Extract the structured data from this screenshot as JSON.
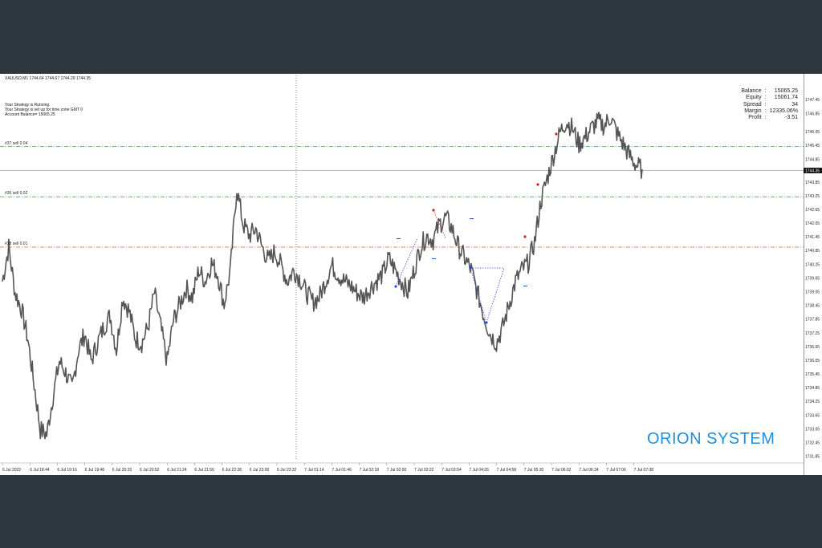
{
  "app": {
    "symbol_header": "XAUUSD,M1  1744.64 1744.67 1744.29 1744.35"
  },
  "strategy_info": [
    "Your Strategy is Running.",
    "Your Strategy is set up for time zone GMT 0",
    "Account Balance= 15065.25"
  ],
  "trade_levels": [
    {
      "label": "#37 sell 0.04",
      "price": 1745.4,
      "color": "#3a9a3a"
    },
    {
      "label": "#36 sell 0.02",
      "price": 1743.2,
      "color": "#3a9a3a"
    },
    {
      "label": "#38 sell 0.01",
      "price": 1741.0,
      "color": "#e07a50"
    }
  ],
  "account": [
    {
      "key": "Balance",
      "value": "15065.25"
    },
    {
      "key": "Equity",
      "value": "15061.74"
    },
    {
      "key": "Spread",
      "value": "34"
    },
    {
      "key": "Margin",
      "value": "12335.06%"
    },
    {
      "key": "Profit",
      "value": "-3.51"
    }
  ],
  "watermark": "ORION SYSTEM",
  "colors": {
    "background": "#2c3740",
    "chart_bg": "#ffffff",
    "bars": "#555555",
    "watermark": "#1e8fe0",
    "bid_line": "#bbbbbb"
  },
  "chart_data": {
    "type": "line",
    "symbol": "XAUUSD",
    "timeframe": "M1",
    "current_price": "1744.35",
    "ylim": [
      1731.8,
      1748.3
    ],
    "y_ticks": [
      "1747.45",
      "1746.85",
      "1746.05",
      "1745.45",
      "1744.85",
      "1744.35",
      "1743.85",
      "1743.25",
      "1742.65",
      "1742.05",
      "1741.45",
      "1740.85",
      "1740.25",
      "1739.65",
      "1739.05",
      "1738.45",
      "1737.85",
      "1737.25",
      "1736.65",
      "1736.05",
      "1735.45",
      "1734.85",
      "1734.25",
      "1733.65",
      "1733.05",
      "1732.45",
      "1731.85"
    ],
    "x_ticks": [
      "6 Jul 2022",
      "6 Jul 18:44",
      "6 Jul 19:16",
      "6 Jul 19:48",
      "6 Jul 20:20",
      "6 Jul 20:52",
      "6 Jul 21:24",
      "6 Jul 21:56",
      "6 Jul 22:28",
      "6 Jul 23:00",
      "6 Jul 23:32",
      "7 Jul 01:14",
      "7 Jul 01:46",
      "7 Jul 02:18",
      "7 Jul 02:50",
      "7 Jul 03:22",
      "7 Jul 03:54",
      "7 Jul 04:26",
      "7 Jul 04:58",
      "7 Jul 05:30",
      "7 Jul 06:02",
      "7 Jul 06:34",
      "7 Jul 07:06",
      "7 Jul 07:38"
    ],
    "series": [
      {
        "values": [
          1739.5,
          1741.0,
          1739.0,
          1738.3,
          1737.0,
          1735.0,
          1733.0,
          1732.8,
          1734.5,
          1736.0,
          1735.5,
          1734.8,
          1736.5,
          1737.2,
          1736.0,
          1736.8,
          1737.5,
          1738.0,
          1736.5,
          1738.8,
          1738.2,
          1737.0,
          1736.8,
          1737.5,
          1739.0,
          1737.5,
          1736.0,
          1737.8,
          1738.5,
          1739.2,
          1738.8,
          1740.0,
          1739.5,
          1740.3,
          1739.8,
          1738.5,
          1740.0,
          1743.6,
          1742.0,
          1741.5,
          1741.8,
          1741.0,
          1740.4,
          1740.8,
          1740.2,
          1739.5,
          1740.0,
          1739.6,
          1739.0,
          1738.6,
          1738.8,
          1739.5,
          1740.2,
          1739.8,
          1739.5,
          1739.3,
          1739.0,
          1738.8,
          1739.2,
          1739.5,
          1739.8,
          1740.5,
          1740.0,
          1739.5,
          1739.0,
          1740.0,
          1741.0,
          1741.5,
          1741.3,
          1742.0,
          1742.3,
          1741.8,
          1741.0,
          1740.5,
          1740.0,
          1739.0,
          1738.0,
          1737.2,
          1736.8,
          1737.5,
          1738.5,
          1739.5,
          1740.0,
          1740.3,
          1741.2,
          1743.0,
          1744.0,
          1745.0,
          1746.0,
          1746.5,
          1746.2,
          1745.5,
          1745.8,
          1746.2,
          1746.5,
          1746.3,
          1746.7,
          1746.0,
          1745.5,
          1745.0,
          1744.6,
          1744.4
        ],
        "color": "#555555"
      }
    ],
    "grid": false,
    "period_separator": "6 Jul 23:32"
  }
}
